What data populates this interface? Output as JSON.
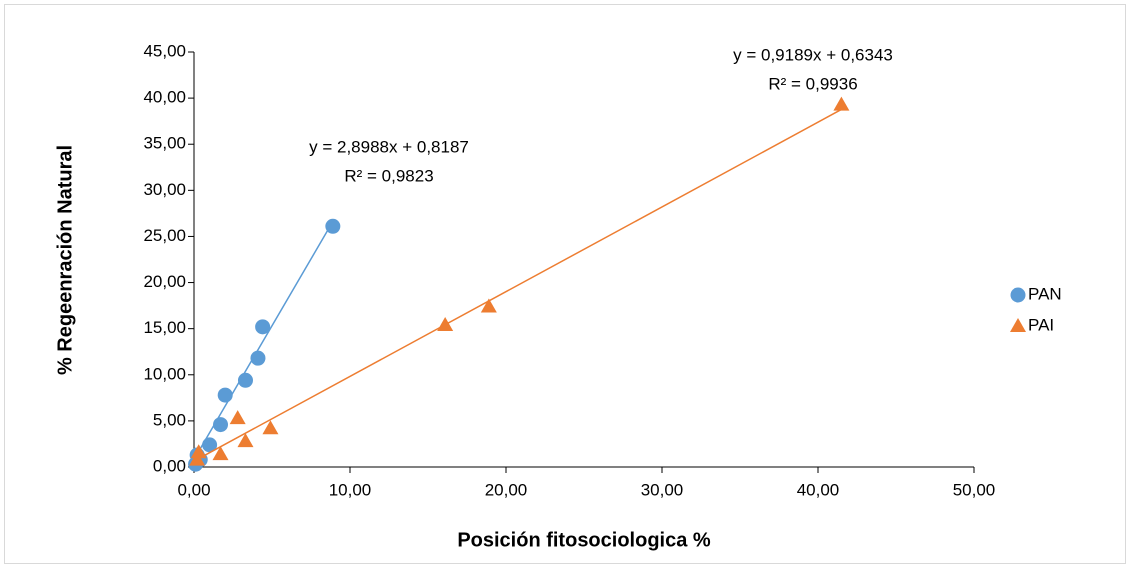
{
  "chart_data": {
    "type": "scatter",
    "x_label": "Posición fitosociologica %",
    "y_label": "% Regeenración Natural",
    "xlim": [
      0,
      50
    ],
    "xticks": [
      {
        "value": 0,
        "label": "0,00"
      },
      {
        "value": 10,
        "label": "10,00"
      },
      {
        "value": 20,
        "label": "20,00"
      },
      {
        "value": 30,
        "label": "30,00"
      },
      {
        "value": 40,
        "label": "40,00"
      },
      {
        "value": 50,
        "label": "50,00"
      }
    ],
    "ylim": [
      0,
      45
    ],
    "yticks": [
      {
        "value": 0,
        "label": "0,00"
      },
      {
        "value": 5,
        "label": "5,00"
      },
      {
        "value": 10,
        "label": "10,00"
      },
      {
        "value": 15,
        "label": "15,00"
      },
      {
        "value": 20,
        "label": "20,00"
      },
      {
        "value": 25,
        "label": "25,00"
      },
      {
        "value": 30,
        "label": "30,00"
      },
      {
        "value": 35,
        "label": "35,00"
      },
      {
        "value": 40,
        "label": "40,00"
      },
      {
        "value": 45,
        "label": "45,00"
      }
    ],
    "legend_position": "right",
    "series": [
      {
        "name": "PAN",
        "color": "#5b9bd5",
        "marker": "circle",
        "x": [
          8.9,
          4.4,
          4.1,
          3.3,
          2.0,
          1.7,
          1.0,
          0.2,
          0.4,
          0.1
        ],
        "values": [
          26.1,
          15.2,
          11.8,
          9.4,
          7.8,
          4.6,
          2.4,
          1.3,
          0.8,
          0.3
        ],
        "trendline": {
          "slope": 2.8988,
          "intercept": 0.8187,
          "equation": "y = 2,8988x + 0,8187",
          "r2": "R² = 0,9823"
        }
      },
      {
        "name": "PAI",
        "color": "#ed7d31",
        "marker": "triangle",
        "x": [
          41.5,
          18.9,
          16.1,
          4.9,
          2.8,
          3.3,
          1.7,
          0.3,
          0.2
        ],
        "values": [
          39.3,
          17.4,
          15.4,
          4.2,
          5.3,
          2.8,
          1.4,
          1.6,
          0.8
        ],
        "trendline": {
          "slope": 0.9189,
          "intercept": 0.6343,
          "equation": "y = 0,9189x + 0,6343",
          "r2": "R² = 0,9936"
        }
      }
    ]
  }
}
